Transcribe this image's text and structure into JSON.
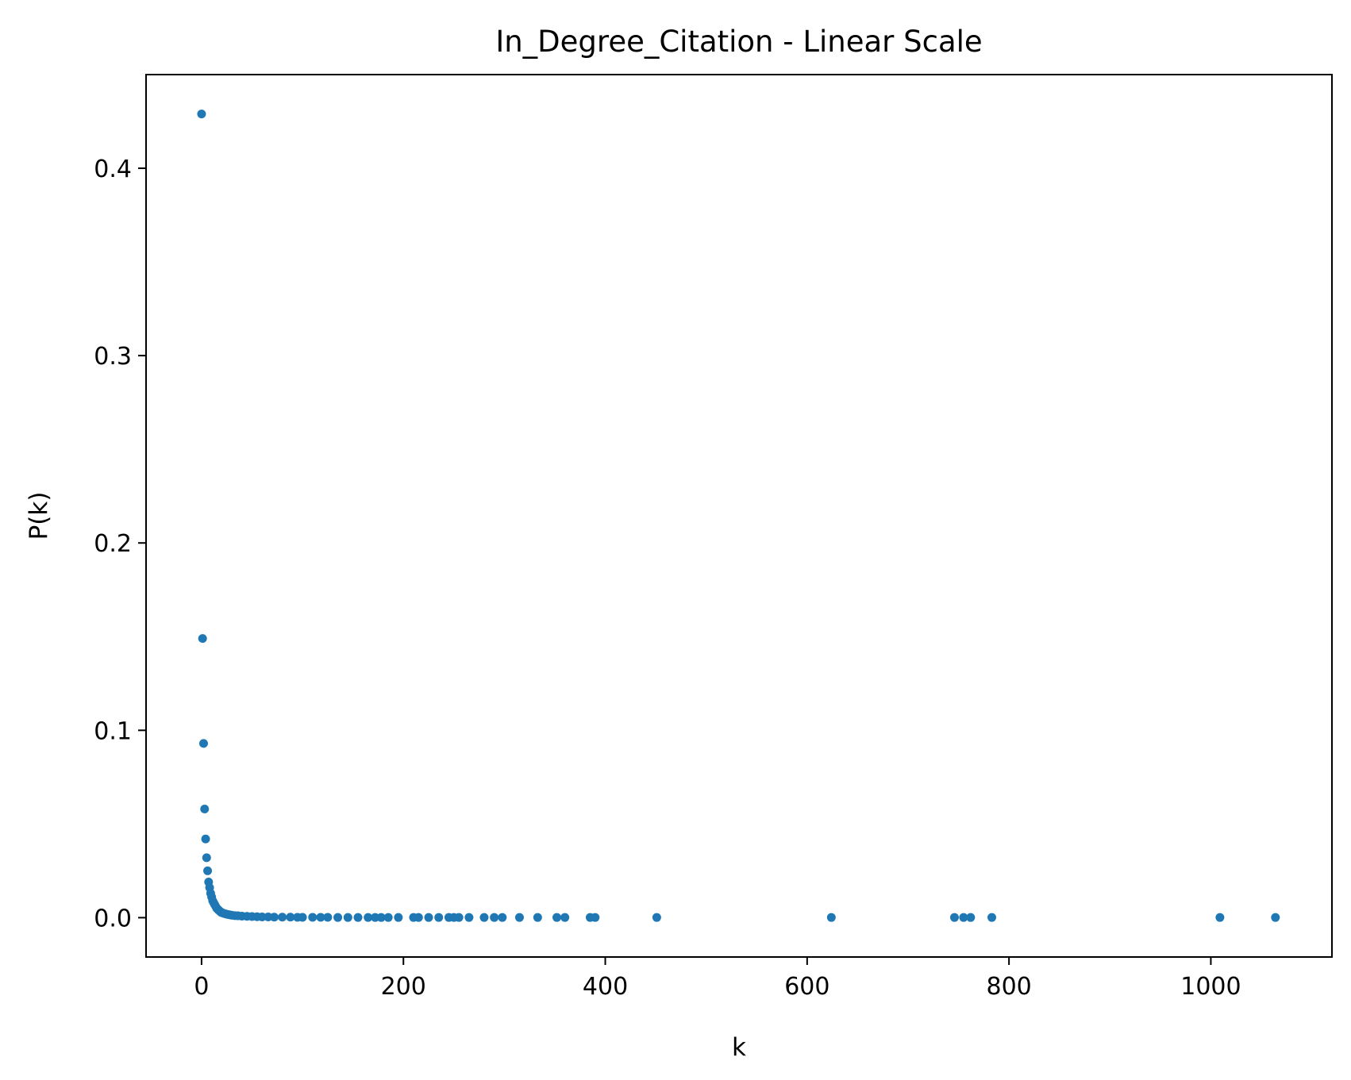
{
  "chart_data": {
    "type": "scatter",
    "title": "In_Degree_Citation - Linear Scale",
    "xlabel": "k",
    "ylabel": "P(k)",
    "xlim": [
      -55,
      1120
    ],
    "ylim": [
      -0.021,
      0.45
    ],
    "xticks": [
      0,
      200,
      400,
      600,
      800,
      1000
    ],
    "xtick_labels": [
      "0",
      "200",
      "400",
      "600",
      "800",
      "1000"
    ],
    "yticks": [
      0.0,
      0.1,
      0.2,
      0.3,
      0.4
    ],
    "ytick_labels": [
      "0.0",
      "0.1",
      "0.2",
      "0.3",
      "0.4"
    ],
    "grid": false,
    "marker_color": "#1f77b4",
    "x": [
      0,
      1,
      2,
      3,
      4,
      5,
      6,
      7,
      8,
      9,
      10,
      11,
      12,
      13,
      14,
      15,
      16,
      17,
      18,
      19,
      20,
      22,
      24,
      26,
      28,
      30,
      33,
      36,
      40,
      45,
      50,
      55,
      60,
      66,
      72,
      80,
      88,
      95,
      100,
      110,
      118,
      125,
      135,
      145,
      155,
      165,
      172,
      178,
      185,
      195,
      210,
      215,
      225,
      235,
      245,
      250,
      255,
      265,
      280,
      290,
      298,
      315,
      333,
      352,
      360,
      385,
      390,
      451,
      624,
      746,
      755,
      762,
      783,
      1009,
      1064
    ],
    "y": [
      0.429,
      0.149,
      0.093,
      0.058,
      0.042,
      0.032,
      0.025,
      0.019,
      0.016,
      0.013,
      0.011,
      0.009,
      0.008,
      0.007,
      0.006,
      0.005,
      0.0045,
      0.004,
      0.0035,
      0.003,
      0.0027,
      0.0023,
      0.002,
      0.0017,
      0.0015,
      0.0013,
      0.0011,
      0.001,
      0.0008,
      0.0007,
      0.0006,
      0.0005,
      0.0004,
      0.0004,
      0.0003,
      0.0003,
      0.0003,
      0.0002,
      0.0002,
      0.0002,
      0.0002,
      0.0002,
      0.0001,
      0.0001,
      0.0001,
      0.0001,
      0.0001,
      0.0001,
      0.0001,
      0.0001,
      0.0001,
      0.0001,
      0.0001,
      0.0001,
      0.0001,
      0.0001,
      0.0001,
      0.0001,
      0.0001,
      0.0001,
      0.0001,
      0.0001,
      0.0001,
      0.0001,
      0.0001,
      0.0001,
      0.0001,
      0.0001,
      0.0001,
      0.0001,
      0.0001,
      0.0001,
      0.0001,
      0.0001,
      0.0001
    ]
  }
}
